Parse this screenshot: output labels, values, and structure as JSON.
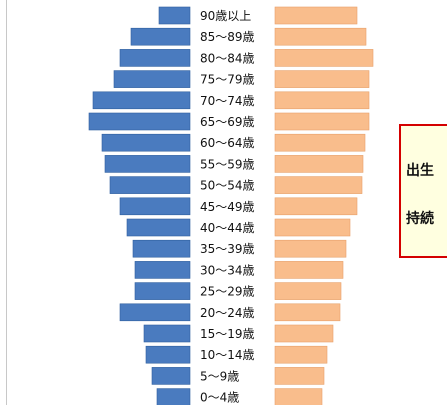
{
  "colors": {
    "male": "#4a7bbf",
    "female": "#f9bd8c",
    "bar_edge_male": "#2f5f9e",
    "bar_edge_female": "#e6a06a",
    "callout_border": "#d40000",
    "callout_fill": "#ffffe0"
  },
  "chart_data": {
    "type": "bar",
    "orientation": "horizontal-pyramid",
    "categories": [
      "90歳以上",
      "85〜89歳",
      "80〜84歳",
      "75〜79歳",
      "70〜74歳",
      "65〜69歳",
      "60〜64歳",
      "55〜59歳",
      "50〜54歳",
      "45〜49歳",
      "40〜44歳",
      "35〜39歳",
      "30〜34歳",
      "25〜29歳",
      "20〜24歳",
      "15〜19歳",
      "10〜14歳",
      "5〜9歳",
      "0〜4歳"
    ],
    "series": [
      {
        "side": "left",
        "values": [
          31,
          59,
          70,
          76,
          97,
          101,
          88,
          85,
          80,
          70,
          63,
          57,
          55,
          55,
          70,
          46,
          44,
          38,
          33
        ]
      },
      {
        "side": "right",
        "values": [
          82,
          91,
          98,
          94,
          94,
          94,
          90,
          88,
          87,
          82,
          75,
          71,
          68,
          66,
          65,
          58,
          52,
          49,
          47
        ]
      }
    ]
  },
  "callout": {
    "line1": "出生",
    "line2": "持続"
  }
}
